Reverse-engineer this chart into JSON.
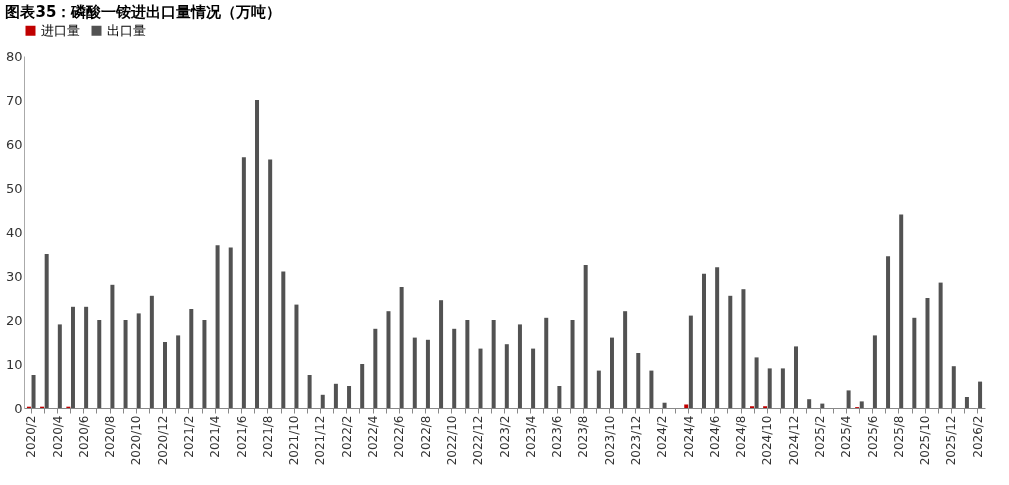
{
  "chart_data": {
    "type": "bar",
    "title": "图表35：磷酸一铵进出口量情况（万吨）",
    "categories": [
      "2020/2",
      null,
      "2020/4",
      null,
      "2020/6",
      null,
      "2020/8",
      null,
      "2020/10",
      null,
      "2020/12",
      null,
      "2021/2",
      null,
      "2021/4",
      null,
      "2021/6",
      null,
      "2021/8",
      null,
      "2021/10",
      null,
      "2021/12",
      null,
      "2022/2",
      null,
      "2022/4",
      null,
      "2022/6",
      null,
      "2022/8",
      null,
      "2022/10",
      null,
      "2022/12",
      null,
      "2023/2",
      null,
      "2023/4",
      null,
      "2023/6",
      null,
      "2023/8",
      null,
      "2023/10",
      null,
      "2023/12",
      null,
      "2024/2",
      null,
      "2024/4",
      null,
      "2024/6",
      null,
      "2024/8",
      null,
      "2024/10",
      null,
      "2024/12",
      null,
      "2025/2",
      null,
      "2025/4",
      null,
      "2025/6",
      null,
      "2025/8",
      null,
      "2025/10",
      null,
      "2025/12",
      null,
      "2026/2"
    ],
    "series": [
      {
        "name": "进口量",
        "color": "#c00000",
        "values": [
          0.3,
          0.3,
          0,
          0.3,
          0,
          0,
          0,
          0,
          0,
          0,
          0,
          0,
          0,
          0,
          0,
          0,
          0,
          0,
          0,
          0,
          0,
          0,
          0,
          0,
          0,
          0,
          0,
          0,
          0,
          0,
          0,
          0,
          0,
          0,
          0,
          0,
          0,
          0,
          0,
          0,
          0,
          0,
          0,
          0,
          0,
          0,
          0,
          0,
          0,
          0,
          0.8,
          0,
          0,
          0,
          0,
          0.4,
          0.4,
          0,
          0,
          0,
          0,
          0,
          0,
          0.2,
          0,
          0,
          0,
          0,
          0,
          0,
          0,
          0,
          0
        ]
      },
      {
        "name": "出口量",
        "color": "#525252",
        "values": [
          7.5,
          35,
          19,
          23,
          23,
          20,
          28,
          20,
          21.5,
          25.5,
          15,
          16.5,
          22.5,
          20,
          37,
          36.5,
          57,
          70,
          56.5,
          31,
          23.5,
          7.5,
          3,
          5.5,
          5,
          10,
          18,
          22,
          27.5,
          16,
          15.5,
          24.5,
          18,
          20,
          13.5,
          20,
          14.5,
          19,
          13.5,
          20.5,
          5,
          20,
          32.5,
          8.5,
          16,
          22,
          12.5,
          8.5,
          1.2,
          0,
          21,
          30.5,
          32,
          25.5,
          27,
          11.5,
          9,
          9,
          14,
          2,
          1,
          0,
          4,
          1.5,
          16.5,
          34.5,
          44,
          20.5,
          25,
          28.5,
          9.5,
          2.5,
          6
        ]
      }
    ],
    "ylim": [
      0,
      80
    ],
    "yticks": [
      0,
      10,
      20,
      30,
      40,
      50,
      60,
      70,
      80
    ],
    "grid": false,
    "legend": "top"
  }
}
